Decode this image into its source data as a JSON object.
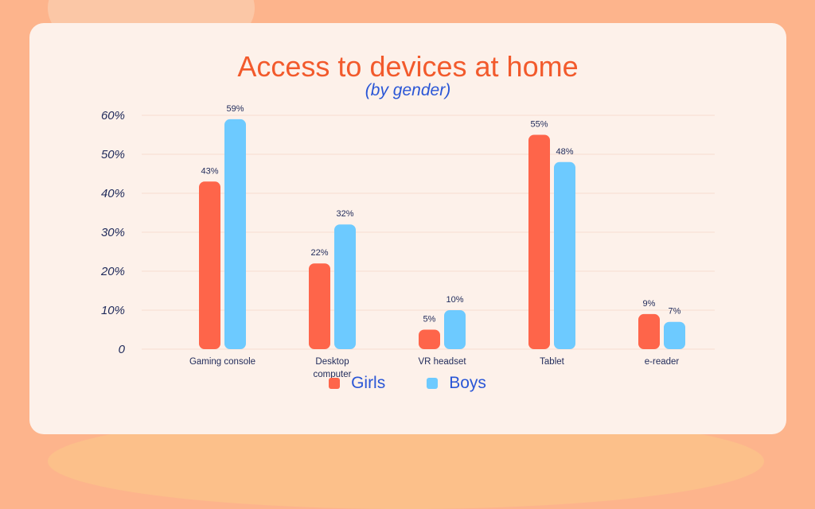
{
  "chart_data": {
    "type": "bar",
    "title": "Access to devices at home",
    "subtitle": "(by gender)",
    "categories": [
      "Gaming console",
      "Desktop computer",
      "VR headset",
      "Tablet",
      "e-reader"
    ],
    "series": [
      {
        "name": "Girls",
        "values": [
          43,
          22,
          5,
          55,
          9
        ],
        "color": "#fe654a"
      },
      {
        "name": "Boys",
        "values": [
          59,
          32,
          10,
          48,
          7
        ],
        "color": "#6dcaff"
      }
    ],
    "value_labels": [
      [
        "43%",
        "22%",
        "5%",
        "55%",
        "9%"
      ],
      [
        "59%",
        "32%",
        "10%",
        "48%",
        "7%"
      ]
    ],
    "yticks": [
      {
        "value": 0,
        "label": "0"
      },
      {
        "value": 10,
        "label": "10%"
      },
      {
        "value": 20,
        "label": "20%"
      },
      {
        "value": 30,
        "label": "30%"
      },
      {
        "value": 40,
        "label": "40%"
      },
      {
        "value": 50,
        "label": "50%"
      },
      {
        "value": 60,
        "label": "60%"
      }
    ],
    "ylim": [
      0,
      60
    ],
    "grid": true,
    "legend_position": "bottom"
  }
}
